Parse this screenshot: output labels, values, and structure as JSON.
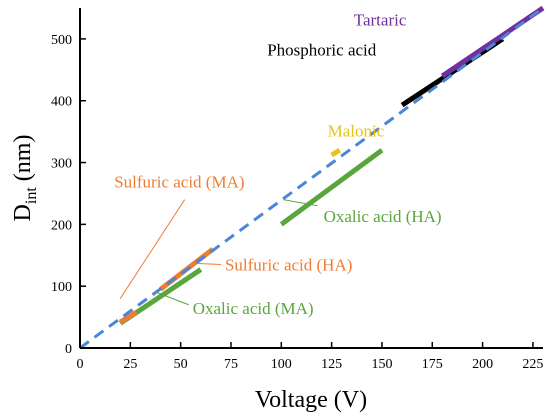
{
  "chart_data": {
    "type": "line",
    "xlabel": "Voltage (V)",
    "ylabel_main": "D",
    "ylabel_sub": "int",
    "ylabel_unit": " (nm)",
    "xlim": [
      0,
      230
    ],
    "ylim": [
      0,
      550
    ],
    "xticks": [
      0,
      25,
      50,
      75,
      100,
      125,
      150,
      175,
      200,
      225
    ],
    "yticks": [
      0,
      100,
      200,
      300,
      400,
      500
    ],
    "grid": false,
    "legend": "none",
    "series": [
      {
        "name": "Oxalic acid (MA)",
        "color": "#5aa63c",
        "x": [
          20,
          60
        ],
        "y": [
          40,
          127
        ]
      },
      {
        "name": "Oxalic acid (HA)",
        "color": "#5aa63c",
        "x": [
          100,
          150
        ],
        "y": [
          200,
          320
        ]
      },
      {
        "name": "Sulfuric acid (MA)",
        "color": "#ed7d31",
        "x": [
          20,
          28
        ],
        "y": [
          42,
          58
        ]
      },
      {
        "name": "Sulfuric acid (HA)",
        "color": "#ed7d31",
        "x": [
          40,
          66
        ],
        "y": [
          95,
          160
        ]
      },
      {
        "name": "Malonic",
        "color": "#e8c31a",
        "x": [
          125,
          129
        ],
        "y": [
          312,
          320
        ]
      },
      {
        "name": "Phosphoric acid",
        "color": "#000000",
        "x": [
          160,
          210
        ],
        "y": [
          393,
          500
        ]
      },
      {
        "name": "Tartaric",
        "color": "#7030a0",
        "x": [
          180,
          230
        ],
        "y": [
          440,
          550
        ]
      },
      {
        "name": "",
        "color": "#4a86d8",
        "dashed": true,
        "x": [
          0,
          230
        ],
        "y": [
          0,
          550
        ]
      }
    ],
    "annotations": [
      {
        "text": "Tartaric",
        "color": "#7030a0",
        "x": 136,
        "y": 522,
        "leader": false
      },
      {
        "text": "Phosphoric acid",
        "color": "#000000",
        "x": 93,
        "y": 473,
        "leader": false
      },
      {
        "text": "Malonic",
        "color": "#e8c31a",
        "x": 123,
        "y": 342,
        "leader": false
      },
      {
        "text": "Sulfuric acid (MA)",
        "color": "#ed7d31",
        "x": 17,
        "y": 260,
        "leader": true,
        "lx1": 52,
        "ly1": 240,
        "lx2": 20,
        "ly2": 80
      },
      {
        "text": "Oxalic acid (HA)",
        "color": "#5aa63c",
        "x": 121,
        "y": 204,
        "leader": true,
        "lx1": 118,
        "ly1": 230,
        "lx2": 101,
        "ly2": 240
      },
      {
        "text": "Sulfuric acid (HA)",
        "color": "#ed7d31",
        "x": 72,
        "y": 125,
        "leader": true,
        "lx1": 70,
        "ly1": 135,
        "lx2": 56,
        "ly2": 137
      },
      {
        "text": "Oxalic acid (MA)",
        "color": "#5aa63c",
        "x": 56,
        "y": 55,
        "leader": true,
        "lx1": 54,
        "ly1": 70,
        "lx2": 38,
        "ly2": 90
      }
    ]
  }
}
